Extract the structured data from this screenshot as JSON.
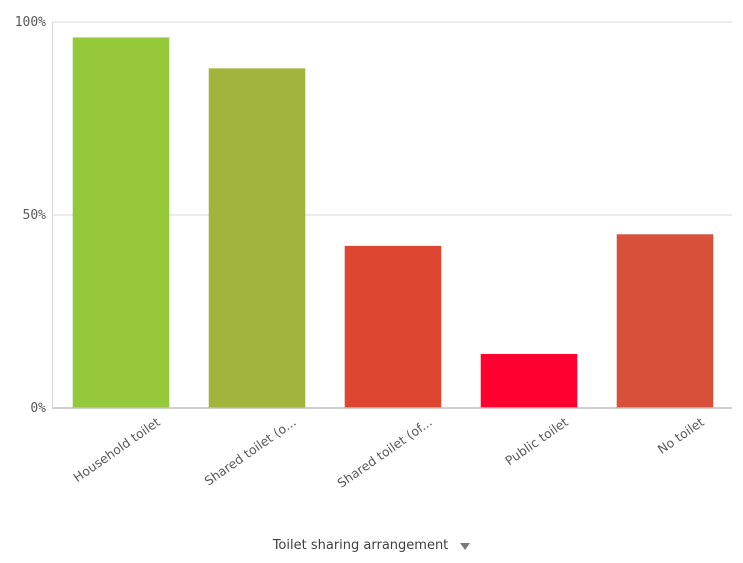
{
  "chart_data": {
    "type": "bar",
    "categories": [
      "Household toilet",
      "Shared toilet (o...",
      "Shared toilet (of...",
      "Public toilet",
      "No toilet"
    ],
    "values": [
      96,
      88,
      42,
      14,
      45
    ],
    "colors": [
      "#96c83b",
      "#a2b43c",
      "#dd4732",
      "#ff0030",
      "#d8503a"
    ],
    "ylim": [
      0,
      100
    ],
    "yticks": [
      0,
      50,
      100
    ],
    "ytick_labels": [
      "0%",
      "50%",
      "100%"
    ],
    "grid": true,
    "xlabel": "Toilet sharing arrangement",
    "ylabel": "",
    "title": ""
  },
  "xaxis_dropdown_icon": "triangle-down"
}
